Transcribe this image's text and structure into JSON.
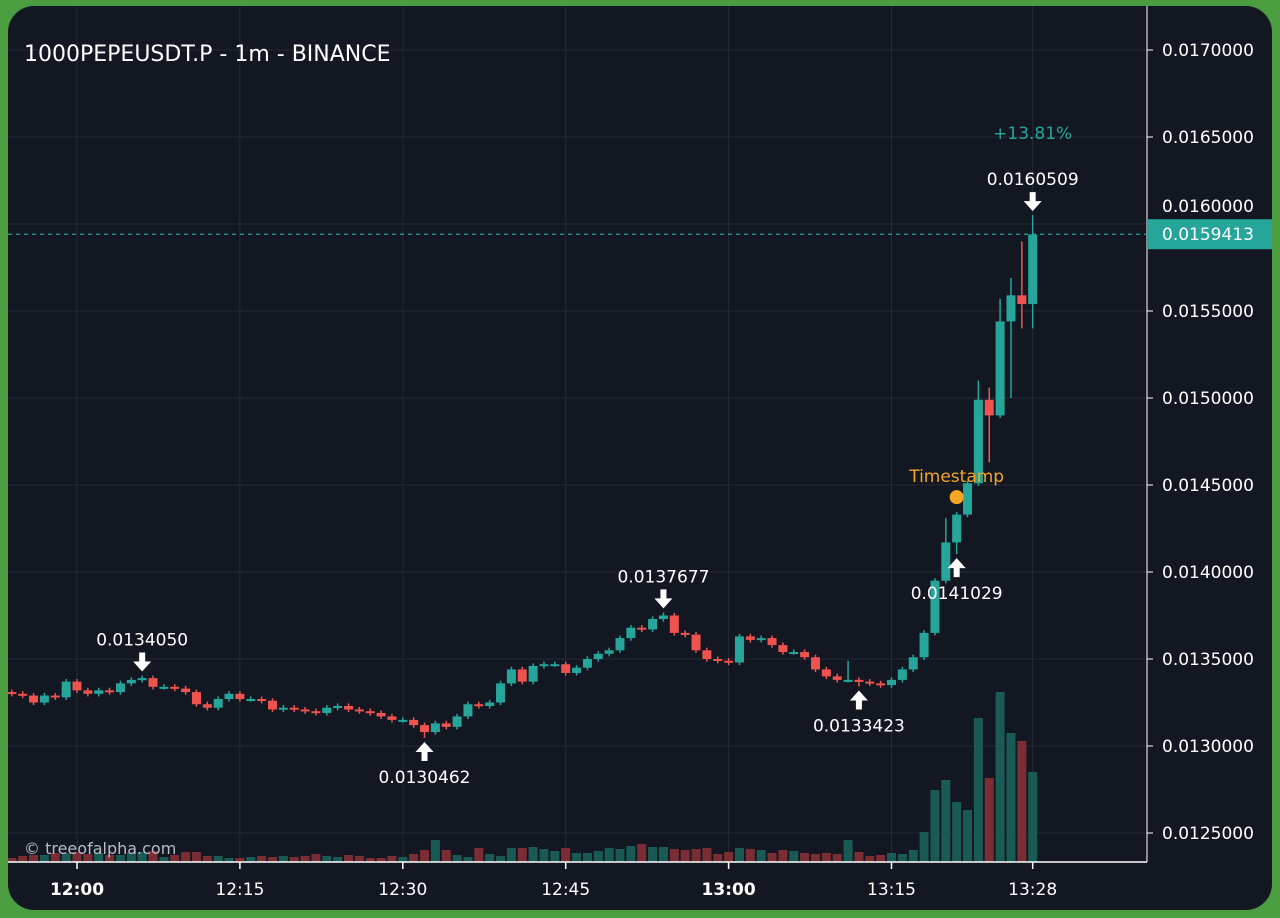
{
  "header": {
    "title": "1000PEPEUSDT.P - 1m - BINANCE"
  },
  "watermark": "© treeofalpha.com",
  "colors": {
    "up": "#26a69a",
    "down": "#ef5350",
    "vol_up": "#1a5a55",
    "vol_down": "#7a2e33",
    "background": "#131722",
    "grid": "#262a35",
    "frame": "#4a9e3f",
    "timestamp": "#f5a623",
    "change": "#26a69a"
  },
  "chart_data": {
    "type": "candlestick",
    "title": "1000PEPEUSDT.P - 1m - BINANCE",
    "start_time": "11:54",
    "interval_minutes": 1,
    "ylim": [
      0.01232,
      0.0172
    ],
    "grid": true,
    "y_ticks": [
      "0.0170000",
      "0.0165000",
      "0.0160000",
      "0.0155000",
      "0.0150000",
      "0.0145000",
      "0.0140000",
      "0.0135000",
      "0.0130000",
      "0.0125000"
    ],
    "x_ticks": [
      {
        "label": "12:00",
        "bold": true
      },
      {
        "label": "12:15",
        "bold": false
      },
      {
        "label": "12:30",
        "bold": false
      },
      {
        "label": "12:45",
        "bold": false
      },
      {
        "label": "13:00",
        "bold": true
      },
      {
        "label": "13:15",
        "bold": false
      },
      {
        "label": "13:28",
        "bold": false
      }
    ],
    "first_open": 0.01331,
    "close": [
      0.0133,
      0.01329,
      0.01325,
      0.01329,
      0.01328,
      0.01337,
      0.01332,
      0.0133,
      0.01332,
      0.01331,
      0.01336,
      0.01338,
      0.01339,
      0.01334,
      0.01334,
      0.01333,
      0.01331,
      0.01324,
      0.01322,
      0.01327,
      0.0133,
      0.01327,
      0.01327,
      0.01326,
      0.01321,
      0.01322,
      0.01321,
      0.0132,
      0.01319,
      0.01322,
      0.01323,
      0.01321,
      0.0132,
      0.01319,
      0.01317,
      0.01315,
      0.01315,
      0.01312,
      0.01308,
      0.01313,
      0.01311,
      0.01317,
      0.01324,
      0.01323,
      0.01325,
      0.01336,
      0.01344,
      0.01337,
      0.01346,
      0.01347,
      0.01347,
      0.01342,
      0.01345,
      0.0135,
      0.01353,
      0.01355,
      0.01362,
      0.01368,
      0.01367,
      0.01373,
      0.01375,
      0.01365,
      0.01364,
      0.01355,
      0.0135,
      0.01349,
      0.01348,
      0.01363,
      0.01361,
      0.01362,
      0.01358,
      0.01354,
      0.01354,
      0.01351,
      0.01344,
      0.0134,
      0.01338,
      0.01338,
      0.01337,
      0.01336,
      0.01335,
      0.01338,
      0.01344,
      0.01351,
      0.01365,
      0.01395,
      0.01417,
      0.01433,
      0.01451,
      0.01499,
      0.0149,
      0.01544,
      0.01559,
      0.01554,
      0.01594
    ],
    "wick_overrides": {
      "12": {
        "h": 0.013405
      },
      "38": {
        "l": 0.0130462
      },
      "60": {
        "h": 0.0137677
      },
      "78": {
        "l": 0.0133423
      },
      "77": {
        "h": 0.01349
      },
      "86": {
        "h": 0.01431
      },
      "87": {
        "l": 0.0141029
      },
      "89": {
        "h": 0.0151
      },
      "90": {
        "h": 0.01506,
        "l": 0.01463
      },
      "91": {
        "h": 0.01557
      },
      "92": {
        "h": 0.01569,
        "l": 0.015
      },
      "93": {
        "h": 0.0159,
        "l": 0.0154
      },
      "94": {
        "h": 0.0160509,
        "l": 0.0154
      }
    },
    "volume": [
      4,
      6,
      7,
      7,
      9,
      9,
      10,
      8,
      9,
      7,
      7,
      9,
      10,
      11,
      5,
      7,
      10,
      10,
      6,
      6,
      4,
      4,
      5,
      6,
      5,
      6,
      5,
      6,
      8,
      6,
      5,
      7,
      6,
      4,
      4,
      6,
      5,
      8,
      12,
      22,
      12,
      7,
      5,
      14,
      8,
      6,
      14,
      14,
      15,
      13,
      11,
      14,
      9,
      9,
      11,
      14,
      13,
      16,
      18,
      15,
      15,
      13,
      12,
      13,
      14,
      8,
      10,
      14,
      13,
      12,
      9,
      12,
      11,
      9,
      8,
      9,
      8,
      22,
      10,
      6,
      7,
      9,
      8,
      12,
      30,
      72,
      82,
      60,
      52,
      144,
      84,
      170,
      129,
      121,
      90
    ],
    "last_price": "0.0159413",
    "last_price_value": 0.0159413,
    "change_label": "+13.81%",
    "annotations": [
      {
        "time": "12:06",
        "price": 0.013405,
        "label": "0.0134050",
        "type": "high"
      },
      {
        "time": "12:32",
        "price": 0.0130462,
        "label": "0.0130462",
        "type": "low"
      },
      {
        "time": "12:54",
        "price": 0.0137677,
        "label": "0.0137677",
        "type": "high"
      },
      {
        "time": "13:12",
        "price": 0.0133423,
        "label": "0.0133423",
        "type": "low"
      },
      {
        "time": "13:21",
        "price": 0.0141029,
        "label": "0.0141029",
        "type": "low"
      },
      {
        "time": "13:28",
        "price": 0.0160509,
        "label": "0.0160509",
        "type": "high"
      }
    ],
    "timestamp_marker": {
      "time": "13:21",
      "price": 0.01443,
      "label": "Timestamp"
    }
  }
}
